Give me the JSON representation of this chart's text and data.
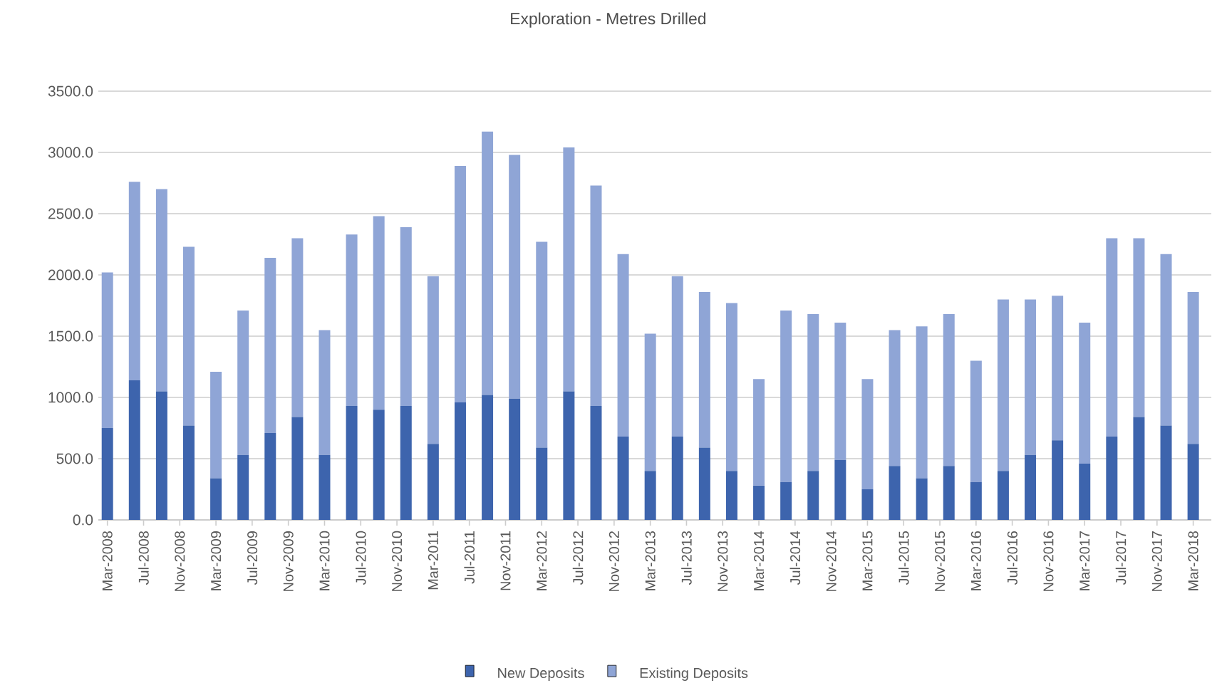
{
  "chart_data": {
    "type": "bar",
    "title": "Exploration - Metres  Drilled",
    "stacked": true,
    "grid": "y",
    "legend": "bottom",
    "x": [
      "2008-03",
      "2008-06",
      "2008-09",
      "2008-12",
      "2009-03",
      "2009-06",
      "2009-09",
      "2009-12",
      "2010-03",
      "2010-06",
      "2010-09",
      "2010-12",
      "2011-03",
      "2011-06",
      "2011-09",
      "2011-12",
      "2012-03",
      "2012-06",
      "2012-09",
      "2012-12",
      "2013-03",
      "2013-06",
      "2013-09",
      "2013-12",
      "2014-03",
      "2014-06",
      "2014-09",
      "2014-12",
      "2015-03",
      "2015-06",
      "2015-09",
      "2015-12",
      "2016-03",
      "2016-06",
      "2016-09",
      "2016-12",
      "2017-03",
      "2017-06",
      "2017-09",
      "2017-12",
      "2018-03"
    ],
    "series": [
      {
        "name": "New Deposits",
        "color": "#3d64ad",
        "values": [
          750,
          1140,
          1050,
          770,
          340,
          530,
          710,
          840,
          530,
          930,
          900,
          930,
          620,
          960,
          1020,
          990,
          590,
          1050,
          930,
          680,
          400,
          680,
          590,
          400,
          280,
          310,
          400,
          490,
          250,
          440,
          340,
          440,
          310,
          400,
          530,
          650,
          460,
          680,
          840,
          770,
          620
        ]
      },
      {
        "name": "Existing Deposits",
        "color": "#8fa5d6",
        "values": [
          1270,
          1620,
          1650,
          1460,
          870,
          1180,
          1430,
          1460,
          1020,
          1400,
          1580,
          1460,
          1370,
          1930,
          2150,
          1990,
          1680,
          1990,
          1800,
          1490,
          1120,
          1310,
          1270,
          1370,
          870,
          1400,
          1280,
          1120,
          900,
          1110,
          1240,
          1240,
          990,
          1400,
          1270,
          1180,
          1150,
          1620,
          1460,
          1400,
          1240
        ]
      }
    ],
    "xlim": [
      "2008-02",
      "2018-05"
    ],
    "xticks": [
      {
        "value": "2008-03",
        "label": "Mar-2008"
      },
      {
        "value": "2008-07",
        "label": "Jul-2008"
      },
      {
        "value": "2008-11",
        "label": "Nov-2008"
      },
      {
        "value": "2009-03",
        "label": "Mar-2009"
      },
      {
        "value": "2009-07",
        "label": "Jul-2009"
      },
      {
        "value": "2009-11",
        "label": "Nov-2009"
      },
      {
        "value": "2010-03",
        "label": "Mar-2010"
      },
      {
        "value": "2010-07",
        "label": "Jul-2010"
      },
      {
        "value": "2010-11",
        "label": "Nov-2010"
      },
      {
        "value": "2011-03",
        "label": "Mar-2011"
      },
      {
        "value": "2011-07",
        "label": "Jul-2011"
      },
      {
        "value": "2011-11",
        "label": "Nov-2011"
      },
      {
        "value": "2012-03",
        "label": "Mar-2012"
      },
      {
        "value": "2012-07",
        "label": "Jul-2012"
      },
      {
        "value": "2012-11",
        "label": "Nov-2012"
      },
      {
        "value": "2013-03",
        "label": "Mar-2013"
      },
      {
        "value": "2013-07",
        "label": "Jul-2013"
      },
      {
        "value": "2013-11",
        "label": "Nov-2013"
      },
      {
        "value": "2014-03",
        "label": "Mar-2014"
      },
      {
        "value": "2014-07",
        "label": "Jul-2014"
      },
      {
        "value": "2014-11",
        "label": "Nov-2014"
      },
      {
        "value": "2015-03",
        "label": "Mar-2015"
      },
      {
        "value": "2015-07",
        "label": "Jul-2015"
      },
      {
        "value": "2015-11",
        "label": "Nov-2015"
      },
      {
        "value": "2016-03",
        "label": "Mar-2016"
      },
      {
        "value": "2016-07",
        "label": "Jul-2016"
      },
      {
        "value": "2016-11",
        "label": "Nov-2016"
      },
      {
        "value": "2017-03",
        "label": "Mar-2017"
      },
      {
        "value": "2017-07",
        "label": "Jul-2017"
      },
      {
        "value": "2017-11",
        "label": "Nov-2017"
      },
      {
        "value": "2018-03",
        "label": "Mar-2018"
      }
    ],
    "ylim": [
      0,
      3500
    ],
    "yticks": [
      {
        "value": 0,
        "label": "0.0"
      },
      {
        "value": 500,
        "label": "500.0"
      },
      {
        "value": 1000,
        "label": "1000.0"
      },
      {
        "value": 1500,
        "label": "1500.0"
      },
      {
        "value": 2000,
        "label": "2000.0"
      },
      {
        "value": 2500,
        "label": "2500.0"
      },
      {
        "value": 3000,
        "label": "3000.0"
      },
      {
        "value": 3500,
        "label": "3500.0"
      }
    ]
  }
}
